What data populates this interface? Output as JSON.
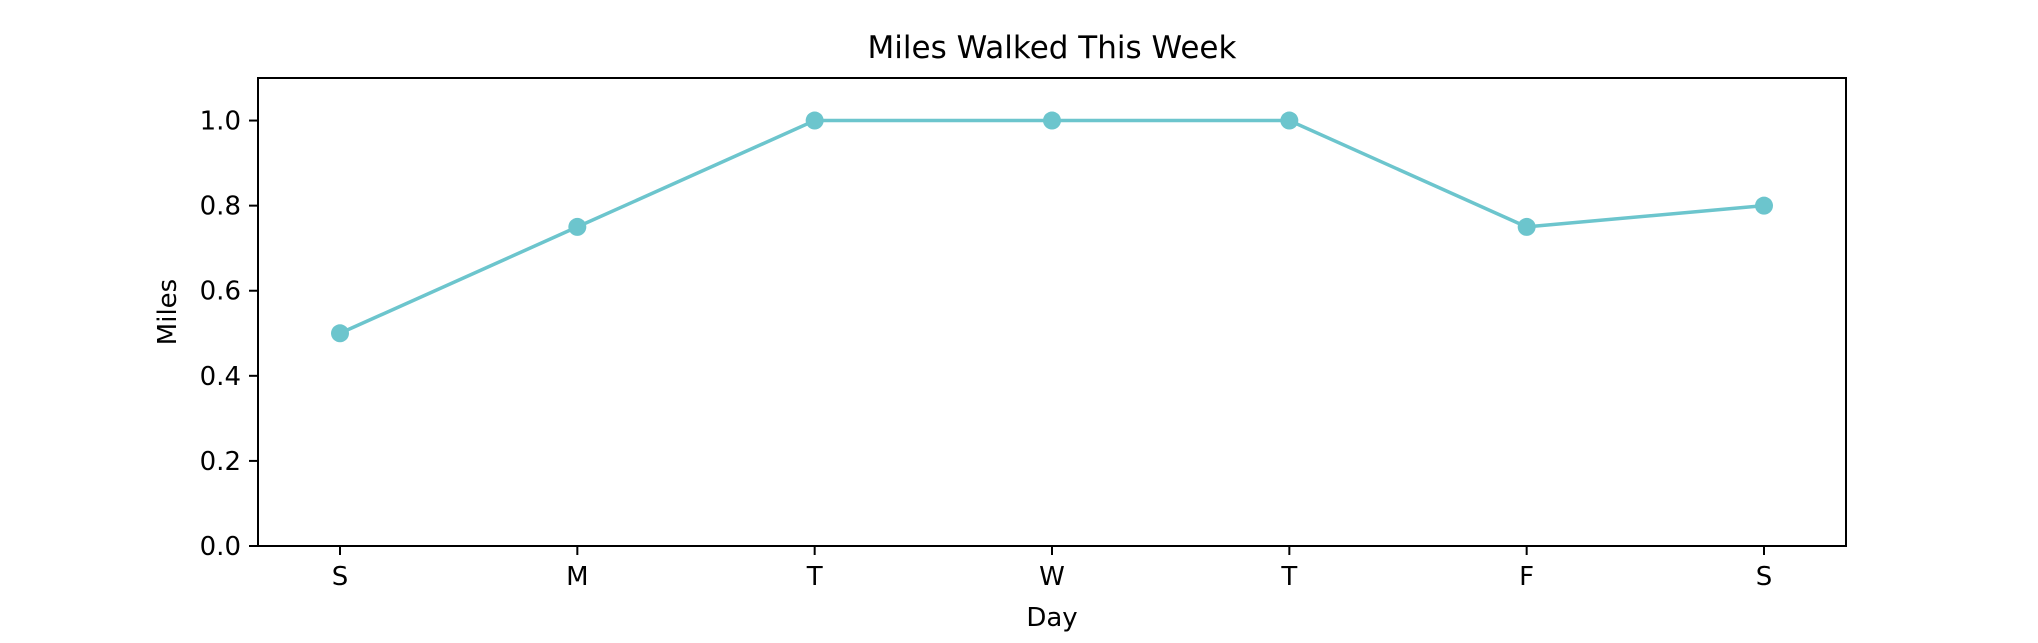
{
  "chart_data": {
    "type": "line",
    "title": "Miles Walked This Week",
    "xlabel": "Day",
    "ylabel": "Miles",
    "categories": [
      "S",
      "M",
      "T",
      "W",
      "T",
      "F",
      "S"
    ],
    "series": [
      {
        "values": [
          0.5,
          0.75,
          1.0,
          1.0,
          1.0,
          0.75,
          0.8
        ]
      }
    ],
    "ylim": [
      0.0,
      1.1
    ],
    "yticks": [
      "0.0",
      "0.2",
      "0.4",
      "0.6",
      "0.8",
      "1.0"
    ],
    "grid": false,
    "legend": "none",
    "colors": {
      "line": "#6cc5cd",
      "marker": "#6cc5cd",
      "axis": "#000000"
    }
  }
}
